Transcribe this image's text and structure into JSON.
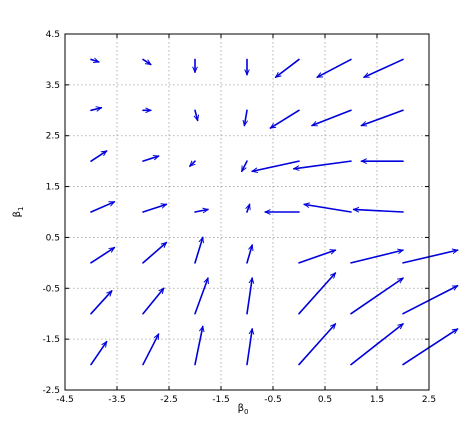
{
  "chart_data": {
    "type": "quiver",
    "xlabel": "β",
    "xlabel_sub": "0",
    "ylabel": "β",
    "ylabel_sub": "1",
    "xlim": [
      -4.5,
      2.5
    ],
    "ylim": [
      -2.5,
      4.5
    ],
    "grid": true,
    "color": "#0000dd",
    "x_ticks": [
      -4.5,
      -3.5,
      -2.5,
      -1.5,
      -0.5,
      0.5,
      1.5,
      2.5
    ],
    "y_ticks": [
      -2.5,
      -1.5,
      -0.5,
      0.5,
      1.5,
      2.5,
      3.5,
      4.5
    ],
    "x_tick_labels": [
      "-4.5",
      "-3.5",
      "-2.5",
      "-1.5",
      "-0.5",
      "0.5",
      "1.5",
      "2.5"
    ],
    "y_tick_labels": [
      "-2.5",
      "-1.5",
      "-0.5",
      "0.5",
      "1.5",
      "2.5",
      "3.5",
      "4.5"
    ],
    "grid_x": [
      -4,
      -3,
      -2,
      -1,
      0,
      1,
      2
    ],
    "grid_y": [
      -2,
      -1,
      0,
      1,
      2,
      3,
      4
    ],
    "u": [
      [
        0.3,
        0.3,
        0.15,
        0.1,
        0.7,
        1.0,
        1.05
      ],
      [
        0.4,
        0.4,
        0.25,
        0.1,
        0.7,
        1.0,
        1.05
      ],
      [
        0.45,
        0.45,
        0.15,
        0.1,
        0.7,
        1.0,
        1.05
      ],
      [
        0.45,
        0.45,
        0.25,
        0.05,
        -0.65,
        -0.9,
        -0.95
      ],
      [
        0.3,
        0.3,
        -0.1,
        -0.1,
        -0.9,
        -1.1,
        -0.8
      ],
      [
        0.2,
        0.15,
        0.05,
        -0.05,
        -0.55,
        -0.75,
        -0.8
      ],
      [
        0.15,
        0.15,
        0.0,
        0.0,
        -0.45,
        -0.65,
        -0.75
      ]
    ],
    "v": [
      [
        0.45,
        0.6,
        0.75,
        0.7,
        0.8,
        0.8,
        0.7
      ],
      [
        0.45,
        0.5,
        0.7,
        0.7,
        0.8,
        0.7,
        0.55
      ],
      [
        0.3,
        0.4,
        0.5,
        0.35,
        0.25,
        0.25,
        0.25
      ],
      [
        0.2,
        0.15,
        0.05,
        0.15,
        0.0,
        0.15,
        0.05
      ],
      [
        0.2,
        0.1,
        -0.1,
        -0.2,
        -0.2,
        -0.15,
        0.0
      ],
      [
        0.05,
        0.0,
        -0.2,
        -0.3,
        -0.35,
        -0.3,
        -0.3
      ],
      [
        -0.05,
        -0.1,
        -0.25,
        -0.3,
        -0.35,
        -0.35,
        -0.35
      ]
    ]
  }
}
